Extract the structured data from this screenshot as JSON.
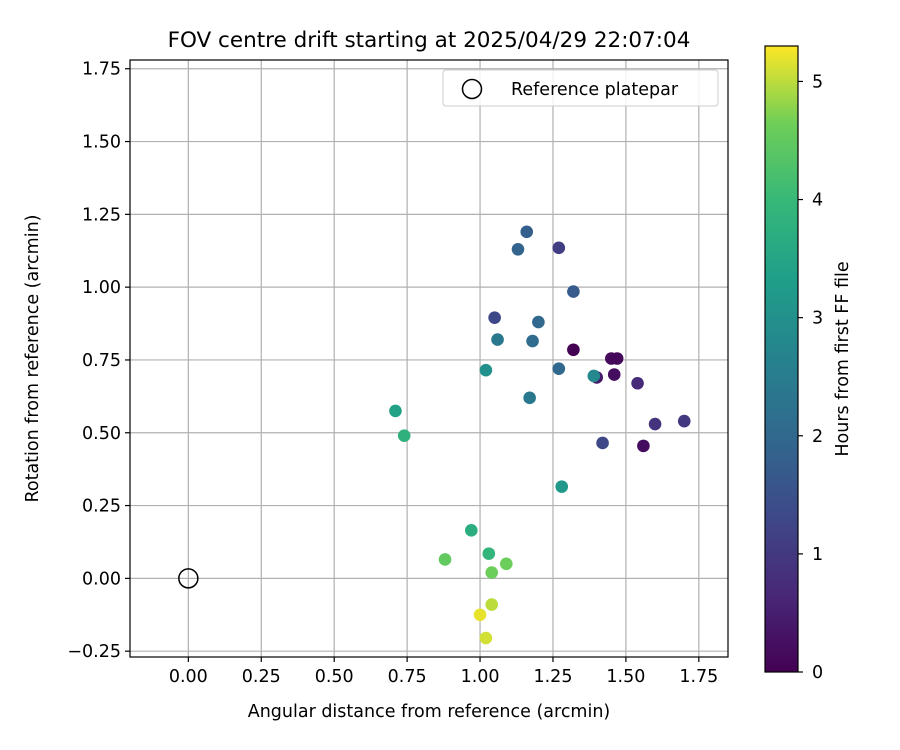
{
  "chart_data": {
    "type": "scatter",
    "title": "FOV centre drift starting at 2025/04/29 22:07:04",
    "xlabel": "Angular distance from reference (arcmin)",
    "ylabel": "Rotation from reference (arcmin)",
    "xlim": [
      -0.2,
      1.85
    ],
    "ylim": [
      -0.27,
      1.78
    ],
    "xticks": [
      "0.00",
      "0.25",
      "0.50",
      "0.75",
      "1.00",
      "1.25",
      "1.50",
      "1.75"
    ],
    "xtick_values": [
      0,
      0.25,
      0.5,
      0.75,
      1.0,
      1.25,
      1.5,
      1.75
    ],
    "yticks": [
      "−0.25",
      "0.00",
      "0.25",
      "0.50",
      "0.75",
      "1.00",
      "1.25",
      "1.50",
      "1.75"
    ],
    "ytick_values": [
      -0.25,
      0,
      0.25,
      0.5,
      0.75,
      1.0,
      1.25,
      1.5,
      1.75
    ],
    "grid": true,
    "legend": {
      "position": "top-right",
      "label": "Reference platepar"
    },
    "reference_point": {
      "x": 0.0,
      "y": 0.0
    },
    "colorbar": {
      "label": "Hours from first FF file",
      "range": [
        0,
        5.3
      ],
      "ticks": [
        "0",
        "1",
        "2",
        "3",
        "4",
        "5"
      ],
      "tick_values": [
        0,
        1,
        2,
        3,
        4,
        5
      ],
      "colormap": "viridis"
    },
    "points": [
      {
        "x": 1.32,
        "y": 0.785,
        "h": 0.0
      },
      {
        "x": 1.45,
        "y": 0.755,
        "h": 0.15
      },
      {
        "x": 1.47,
        "y": 0.755,
        "h": 0.1
      },
      {
        "x": 1.46,
        "y": 0.7,
        "h": 0.2
      },
      {
        "x": 1.4,
        "y": 0.69,
        "h": 0.4
      },
      {
        "x": 1.56,
        "y": 0.455,
        "h": 0.2
      },
      {
        "x": 1.54,
        "y": 0.67,
        "h": 0.7
      },
      {
        "x": 1.7,
        "y": 0.54,
        "h": 1.0
      },
      {
        "x": 1.6,
        "y": 0.53,
        "h": 0.9
      },
      {
        "x": 1.42,
        "y": 0.465,
        "h": 1.3
      },
      {
        "x": 1.27,
        "y": 1.135,
        "h": 1.1
      },
      {
        "x": 1.05,
        "y": 0.895,
        "h": 1.3
      },
      {
        "x": 1.16,
        "y": 1.19,
        "h": 1.8
      },
      {
        "x": 1.13,
        "y": 1.13,
        "h": 1.9
      },
      {
        "x": 1.32,
        "y": 0.985,
        "h": 1.7
      },
      {
        "x": 1.2,
        "y": 0.88,
        "h": 2.0
      },
      {
        "x": 1.18,
        "y": 0.815,
        "h": 2.1
      },
      {
        "x": 1.27,
        "y": 0.72,
        "h": 2.0
      },
      {
        "x": 1.06,
        "y": 0.82,
        "h": 2.4
      },
      {
        "x": 1.17,
        "y": 0.62,
        "h": 2.4
      },
      {
        "x": 1.39,
        "y": 0.695,
        "h": 2.8
      },
      {
        "x": 1.02,
        "y": 0.715,
        "h": 3.0
      },
      {
        "x": 1.28,
        "y": 0.315,
        "h": 3.2
      },
      {
        "x": 0.71,
        "y": 0.575,
        "h": 3.4
      },
      {
        "x": 0.74,
        "y": 0.49,
        "h": 3.8
      },
      {
        "x": 0.97,
        "y": 0.165,
        "h": 3.7
      },
      {
        "x": 1.03,
        "y": 0.085,
        "h": 3.9
      },
      {
        "x": 0.88,
        "y": 0.065,
        "h": 4.5
      },
      {
        "x": 1.09,
        "y": 0.05,
        "h": 4.6
      },
      {
        "x": 1.04,
        "y": 0.02,
        "h": 4.6
      },
      {
        "x": 1.04,
        "y": -0.09,
        "h": 5.0
      },
      {
        "x": 1.0,
        "y": -0.125,
        "h": 5.2
      },
      {
        "x": 1.02,
        "y": -0.205,
        "h": 5.1
      }
    ]
  }
}
